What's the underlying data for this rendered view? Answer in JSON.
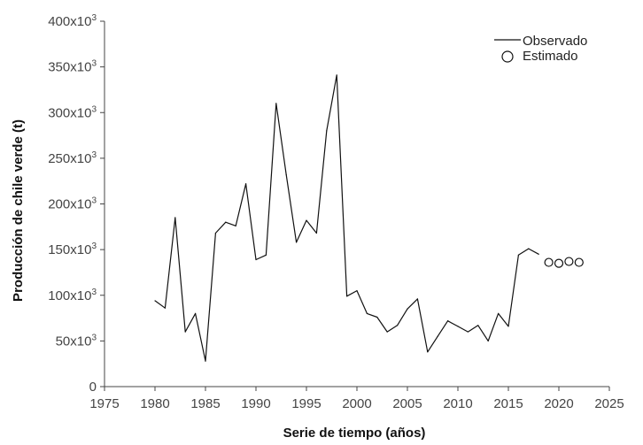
{
  "chart_data": {
    "type": "line",
    "title": "",
    "xlabel": "Serie de tiempo (años)",
    "ylabel": "Producción de chile verde (t)",
    "xlim": [
      1975,
      2025
    ],
    "ylim": [
      0,
      400000
    ],
    "x_ticks": [
      1975,
      1980,
      1985,
      1990,
      1995,
      2000,
      2005,
      2010,
      2015,
      2020,
      2025
    ],
    "y_ticks": [
      {
        "value": 0,
        "base": "0",
        "exp": ""
      },
      {
        "value": 50000,
        "base": "50x10",
        "exp": "3"
      },
      {
        "value": 100000,
        "base": "100x10",
        "exp": "3"
      },
      {
        "value": 150000,
        "base": "150x10",
        "exp": "3"
      },
      {
        "value": 200000,
        "base": "200x10",
        "exp": "3"
      },
      {
        "value": 250000,
        "base": "250x10",
        "exp": "3"
      },
      {
        "value": 300000,
        "base": "300x10",
        "exp": "3"
      },
      {
        "value": 350000,
        "base": "350x10",
        "exp": "3"
      },
      {
        "value": 400000,
        "base": "400x10",
        "exp": "3"
      }
    ],
    "grid": false,
    "legend_position": "top-right",
    "series": [
      {
        "name": "Observado",
        "style": "line",
        "color": "#111111",
        "x": [
          1980,
          1981,
          1982,
          1983,
          1984,
          1985,
          1986,
          1987,
          1988,
          1989,
          1990,
          1991,
          1992,
          1993,
          1994,
          1995,
          1996,
          1997,
          1998,
          1999,
          2000,
          2001,
          2002,
          2003,
          2004,
          2005,
          2006,
          2007,
          2008,
          2009,
          2010,
          2011,
          2012,
          2013,
          2014,
          2015,
          2016,
          2017,
          2018
        ],
        "y": [
          94000,
          86000,
          185000,
          60000,
          80000,
          28000,
          168000,
          180000,
          176000,
          222000,
          139000,
          144000,
          310000,
          232000,
          158000,
          182000,
          168000,
          280000,
          341000,
          99000,
          105000,
          80000,
          76000,
          60000,
          67000,
          85000,
          96000,
          38000,
          55000,
          72000,
          66000,
          60000,
          67000,
          50000,
          80000,
          66000,
          144000,
          151000,
          145000
        ]
      },
      {
        "name": "Estimado",
        "style": "marker",
        "marker": "open-circle",
        "color": "#111111",
        "x": [
          2019,
          2020,
          2021,
          2022
        ],
        "y": [
          136000,
          135000,
          137000,
          136000
        ]
      }
    ]
  }
}
